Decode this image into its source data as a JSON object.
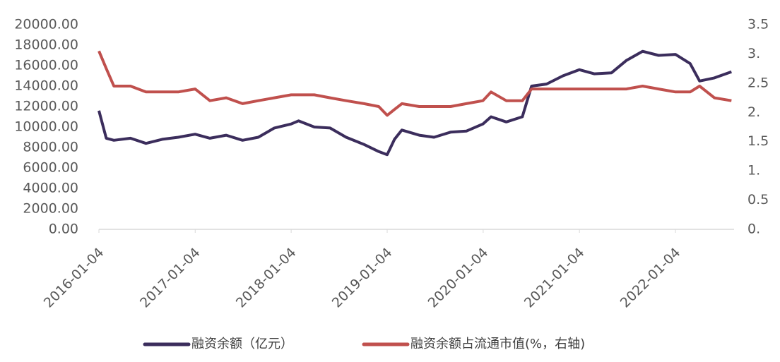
{
  "chart_data": {
    "type": "line",
    "x": [
      "2016-01-04",
      "2016-02-01",
      "2016-03-01",
      "2016-05-03",
      "2016-07-01",
      "2016-09-01",
      "2016-11-01",
      "2017-01-04",
      "2017-03-01",
      "2017-05-02",
      "2017-07-03",
      "2017-09-01",
      "2017-11-01",
      "2018-01-04",
      "2018-02-01",
      "2018-04-02",
      "2018-06-01",
      "2018-08-01",
      "2018-10-08",
      "2018-12-03",
      "2019-01-04",
      "2019-02-01",
      "2019-03-01",
      "2019-05-06",
      "2019-07-01",
      "2019-09-02",
      "2019-11-01",
      "2020-01-03",
      "2020-02-03",
      "2020-04-01",
      "2020-06-01",
      "2020-07-06",
      "2020-09-01",
      "2020-11-02",
      "2021-01-04",
      "2021-03-01",
      "2021-05-06",
      "2021-07-01",
      "2021-09-01",
      "2021-11-01",
      "2022-01-04",
      "2022-03-01",
      "2022-04-06",
      "2022-06-01",
      "2022-08-05"
    ],
    "xlim": [
      "2016-01-04",
      "2022-08-15"
    ],
    "xticks": [
      "2016-01-04",
      "2017-01-04",
      "2018-01-04",
      "2019-01-04",
      "2020-01-04",
      "2021-01-04",
      "2022-01-04"
    ],
    "series": [
      {
        "name": "融资余额（亿元）",
        "color": "#3b2d5c",
        "values": [
          11600,
          8900,
          8700,
          8900,
          8400,
          8800,
          9000,
          9300,
          8900,
          9200,
          8700,
          9000,
          9900,
          10300,
          10600,
          10000,
          9900,
          9000,
          8300,
          7600,
          7300,
          8800,
          9700,
          9200,
          9000,
          9500,
          9600,
          10300,
          11000,
          10500,
          11000,
          14000,
          14200,
          15000,
          15600,
          15200,
          15300,
          16500,
          17400,
          17000,
          17100,
          16200,
          14500,
          14800,
          15400
        ]
      },
      {
        "name": "融资余额占流通市值(%，右轴)",
        "color": "#c0504d",
        "axis": "y2",
        "values": [
          3.05,
          2.75,
          2.45,
          2.45,
          2.35,
          2.35,
          2.35,
          2.4,
          2.2,
          2.25,
          2.15,
          2.2,
          2.25,
          2.3,
          2.3,
          2.3,
          2.25,
          2.2,
          2.15,
          2.1,
          1.95,
          2.05,
          2.15,
          2.1,
          2.1,
          2.1,
          2.15,
          2.2,
          2.35,
          2.2,
          2.2,
          2.4,
          2.4,
          2.4,
          2.4,
          2.4,
          2.4,
          2.4,
          2.45,
          2.4,
          2.35,
          2.35,
          2.45,
          2.25,
          2.2
        ]
      }
    ],
    "ylim": [
      0,
      20000
    ],
    "yticks": [
      {
        "value": 0,
        "label": "0.00"
      },
      {
        "value": 2000,
        "label": "2000.00"
      },
      {
        "value": 4000,
        "label": "4000.00"
      },
      {
        "value": 6000,
        "label": "6000.00"
      },
      {
        "value": 8000,
        "label": "8000.00"
      },
      {
        "value": 10000,
        "label": "10000.00"
      },
      {
        "value": 12000,
        "label": "12000.00"
      },
      {
        "value": 14000,
        "label": "14000.00"
      },
      {
        "value": 16000,
        "label": "16000.00"
      },
      {
        "value": 18000,
        "label": "18000.00"
      },
      {
        "value": 20000,
        "label": "20000.00"
      }
    ],
    "y2lim": [
      0,
      3.5
    ],
    "y2ticks": [
      {
        "value": 0,
        "label": "0."
      },
      0.5,
      {
        "value": 1,
        "label": "1."
      },
      1.5,
      {
        "value": 2,
        "label": "2."
      },
      2.5,
      {
        "value": 3,
        "label": "3."
      },
      3.5
    ],
    "legend": "bottom"
  }
}
